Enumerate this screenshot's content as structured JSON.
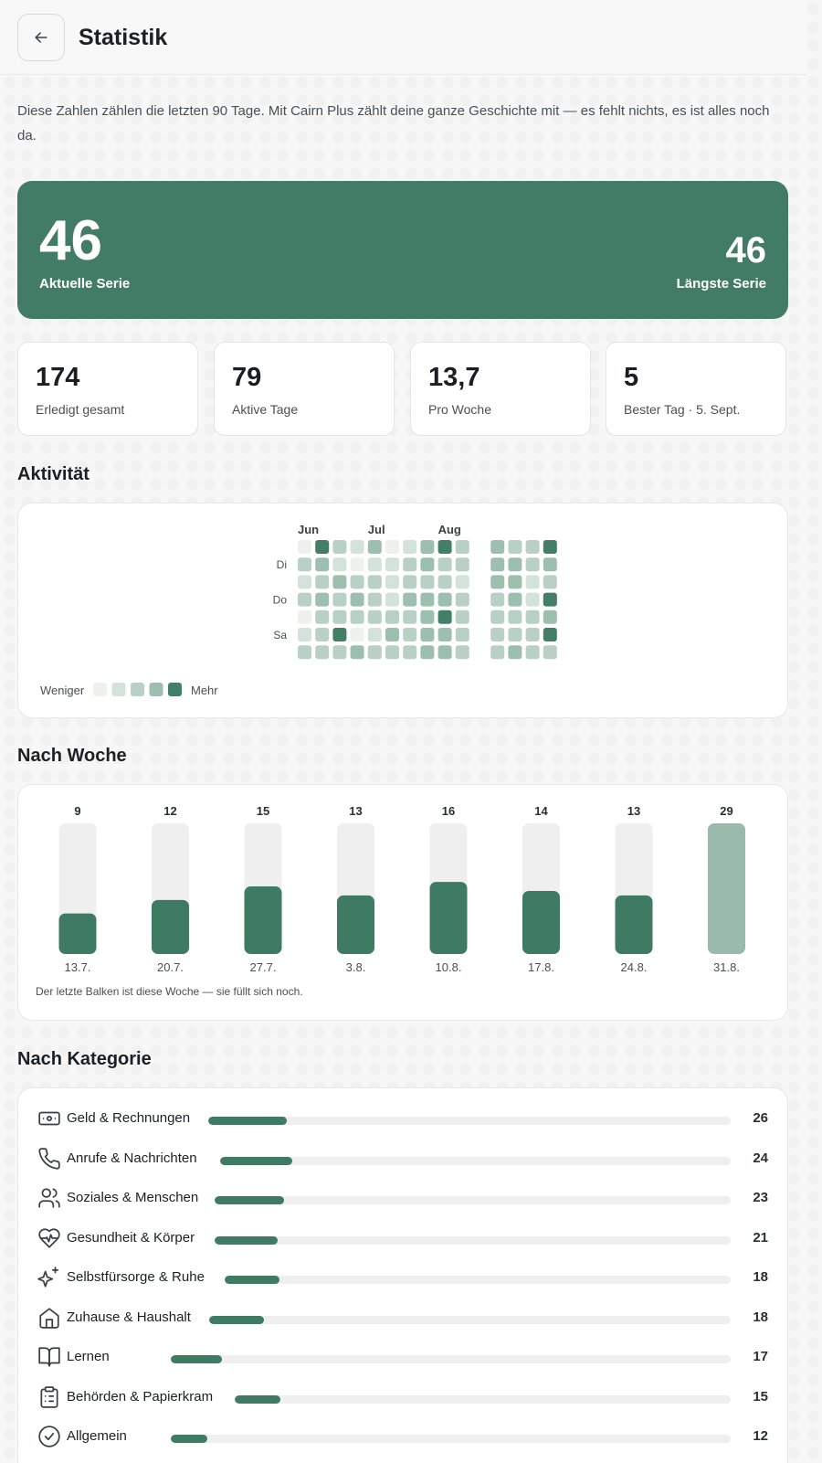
{
  "header": {
    "title": "Statistik",
    "back_icon": "arrow-left-icon"
  },
  "intro": "Diese Zahlen zählen die letzten 90 Tage. Mit Cairn Plus zählt deine ganze Geschichte mit — es fehlt nichts, es ist alles noch da.",
  "streak": {
    "current_value": "46",
    "current_label": "Aktuelle Serie",
    "longest_value": "46",
    "longest_label": "Längste Serie",
    "color": "#427c66"
  },
  "stats": [
    {
      "value": "174",
      "label": "Erledigt gesamt"
    },
    {
      "value": "79",
      "label": "Aktive Tage"
    },
    {
      "value": "13,7",
      "label": "Pro Woche"
    },
    {
      "value": "5",
      "label": "Bester Tag · 5. Sept."
    }
  ],
  "activity": {
    "title": "Aktivität",
    "months": [
      {
        "label": "Jun",
        "col": 0
      },
      {
        "label": "Jul",
        "col": 4
      },
      {
        "label": "Aug",
        "col": 8
      }
    ],
    "day_labels": [
      {
        "label": "Di",
        "row": 1
      },
      {
        "label": "Do",
        "row": 3
      },
      {
        "label": "Sa",
        "row": 5
      }
    ],
    "levels": [
      [
        0,
        4,
        2,
        1,
        3,
        0,
        1,
        3,
        4,
        2,
        -1,
        3,
        2,
        2,
        4
      ],
      [
        2,
        3,
        1,
        0,
        1,
        1,
        2,
        3,
        2,
        2,
        -1,
        3,
        3,
        2,
        3
      ],
      [
        1,
        2,
        3,
        2,
        2,
        1,
        2,
        2,
        2,
        1,
        -1,
        3,
        3,
        1,
        2
      ],
      [
        2,
        3,
        2,
        3,
        2,
        1,
        3,
        3,
        3,
        2,
        -1,
        2,
        3,
        1,
        4
      ],
      [
        0,
        2,
        2,
        2,
        2,
        2,
        2,
        3,
        4,
        2,
        -1,
        2,
        2,
        2,
        3
      ],
      [
        1,
        2,
        4,
        0,
        1,
        3,
        2,
        3,
        3,
        2,
        -1,
        2,
        2,
        2,
        4
      ],
      [
        2,
        2,
        2,
        3,
        2,
        2,
        2,
        3,
        3,
        2,
        -1,
        2,
        3,
        2,
        2
      ]
    ],
    "legend_less": "Weniger",
    "legend_more": "Mehr",
    "colors": [
      "#eff1ef",
      "#d4e2dc",
      "#b8d0c6",
      "#9cbfb0",
      "#437e67"
    ]
  },
  "weekly": {
    "title": "Nach Woche",
    "note": "Der letzte Balken ist diese Woche — sie füllt sich noch."
  },
  "chart_data": {
    "type": "bar",
    "categories": [
      "13.7.",
      "20.7.",
      "27.7.",
      "3.8.",
      "10.8.",
      "17.8.",
      "24.8.",
      "31.8."
    ],
    "values": [
      9,
      12,
      15,
      13,
      16,
      14,
      13,
      29
    ],
    "ylim": [
      0,
      29
    ],
    "colors": {
      "bar": "#3f7a63",
      "current_week": "#9abaac",
      "track": "#eeefee"
    }
  },
  "categories_section": {
    "title": "Nach Kategorie",
    "max": 26,
    "items": [
      {
        "icon": "banknote-icon",
        "label": "Geld & Rechnungen",
        "count": "26",
        "value": 26
      },
      {
        "icon": "phone-icon",
        "label": "Anrufe & Nachrichten",
        "count": "24",
        "value": 24
      },
      {
        "icon": "users-icon",
        "label": "Soziales & Menschen",
        "count": "23",
        "value": 23
      },
      {
        "icon": "heart-pulse-icon",
        "label": "Gesundheit & Körper",
        "count": "21",
        "value": 21
      },
      {
        "icon": "sparkles-icon",
        "label": "Selbstfürsorge & Ruhe",
        "count": "18",
        "value": 18
      },
      {
        "icon": "house-icon",
        "label": "Zuhause & Haushalt",
        "count": "18",
        "value": 18
      },
      {
        "icon": "book-open-icon",
        "label": "Lernen",
        "count": "17",
        "value": 17
      },
      {
        "icon": "clipboard-list-icon",
        "label": "Behörden & Papierkram",
        "count": "15",
        "value": 15
      },
      {
        "icon": "check-circle-icon",
        "label": "Allgemein",
        "count": "12",
        "value": 12
      }
    ]
  }
}
